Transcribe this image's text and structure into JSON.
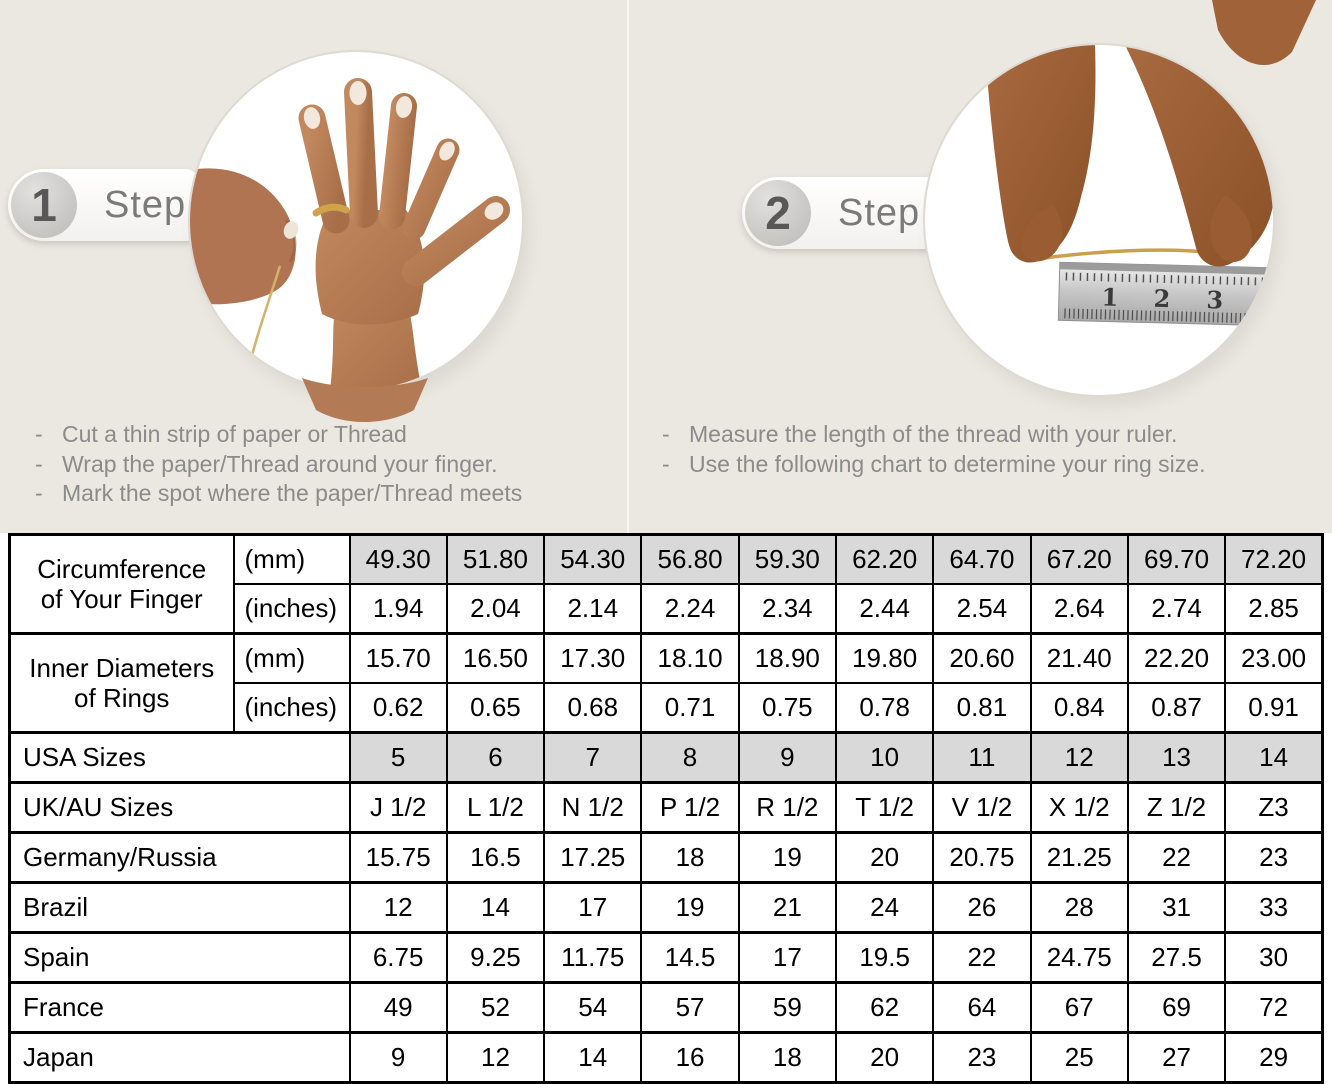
{
  "steps": [
    {
      "number": "1",
      "label": "Step",
      "bullet": "-",
      "instructions": [
        "Cut a thin strip of paper or Thread",
        "Wrap the paper/Thread around your finger.",
        "Mark the spot where the paper/Thread meets"
      ]
    },
    {
      "number": "2",
      "label": "Step",
      "bullet": "-",
      "instructions": [
        "Measure the length of the thread with your ruler.",
        "Use the following chart to determine your ring size."
      ],
      "ruler_numbers": [
        "1",
        "2",
        "3"
      ]
    }
  ],
  "size_chart": {
    "row_groups": [
      {
        "label_lines": [
          "Circumference",
          "of Your Finger"
        ],
        "sub_rows": [
          {
            "unit": "(mm)",
            "shaded": true,
            "values": [
              "49.30",
              "51.80",
              "54.30",
              "56.80",
              "59.30",
              "62.20",
              "64.70",
              "67.20",
              "69.70",
              "72.20"
            ]
          },
          {
            "unit": "(inches)",
            "shaded": false,
            "values": [
              "1.94",
              "2.04",
              "2.14",
              "2.24",
              "2.34",
              "2.44",
              "2.54",
              "2.64",
              "2.74",
              "2.85"
            ]
          }
        ]
      },
      {
        "label_lines": [
          "Inner Diameters",
          "of Rings"
        ],
        "sub_rows": [
          {
            "unit": "(mm)",
            "shaded": false,
            "values": [
              "15.70",
              "16.50",
              "17.30",
              "18.10",
              "18.90",
              "19.80",
              "20.60",
              "21.40",
              "22.20",
              "23.00"
            ]
          },
          {
            "unit": "(inches)",
            "shaded": false,
            "values": [
              "0.62",
              "0.65",
              "0.68",
              "0.71",
              "0.75",
              "0.78",
              "0.81",
              "0.84",
              "0.87",
              "0.91"
            ]
          }
        ]
      }
    ],
    "rows": [
      {
        "label": "USA Sizes",
        "shaded": true,
        "values": [
          "5",
          "6",
          "7",
          "8",
          "9",
          "10",
          "11",
          "12",
          "13",
          "14"
        ]
      },
      {
        "label": "UK/AU Sizes",
        "shaded": false,
        "values": [
          "J 1/2",
          "L 1/2",
          "N 1/2",
          "P 1/2",
          "R 1/2",
          "T 1/2",
          "V 1/2",
          "X 1/2",
          "Z 1/2",
          "Z3"
        ]
      },
      {
        "label": "Germany/Russia",
        "shaded": false,
        "values": [
          "15.75",
          "16.5",
          "17.25",
          "18",
          "19",
          "20",
          "20.75",
          "21.25",
          "22",
          "23"
        ]
      },
      {
        "label": "Brazil",
        "shaded": false,
        "values": [
          "12",
          "14",
          "17",
          "19",
          "21",
          "24",
          "26",
          "28",
          "31",
          "33"
        ]
      },
      {
        "label": "Spain",
        "shaded": false,
        "values": [
          "6.75",
          "9.25",
          "11.75",
          "14.5",
          "17",
          "19.5",
          "22",
          "24.75",
          "27.5",
          "30"
        ]
      },
      {
        "label": "France",
        "shaded": false,
        "values": [
          "49",
          "52",
          "54",
          "57",
          "59",
          "62",
          "64",
          "67",
          "69",
          "72"
        ]
      },
      {
        "label": "Japan",
        "shaded": false,
        "values": [
          "9",
          "12",
          "14",
          "16",
          "18",
          "20",
          "23",
          "25",
          "27",
          "29"
        ]
      }
    ]
  },
  "colors": {
    "panel_background": "#ebe7e1",
    "shaded_cell": "#d9d9d9",
    "table_border": "#000000",
    "instruction_text": "#8b8b8b",
    "step_text": "#7a7a7a",
    "thread_gold": "#c9a14a",
    "skin_light": "#c2895f",
    "skin_dark": "#a3653c",
    "ruler_steel": "#c6c6c6"
  }
}
